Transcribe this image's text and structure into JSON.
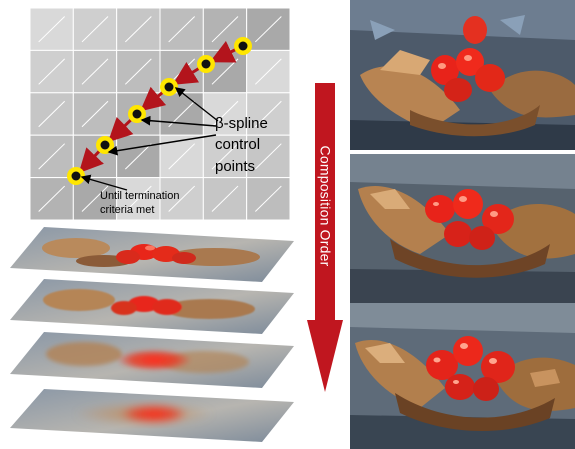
{
  "diagram": {
    "spline_label_lines": [
      "β-spline",
      "control",
      "points"
    ],
    "termination_label_lines": [
      "Until termination",
      "criteria met"
    ],
    "arrow_label": "Composition Order",
    "control_point_count": 6,
    "stroke_layer_count": 4,
    "painting_count": 3
  },
  "colors": {
    "stroke_path": "#b3141c",
    "control_point_ring": "#ffe600",
    "arrow": "#c0161f",
    "grid_background": "#c4c4c4"
  }
}
